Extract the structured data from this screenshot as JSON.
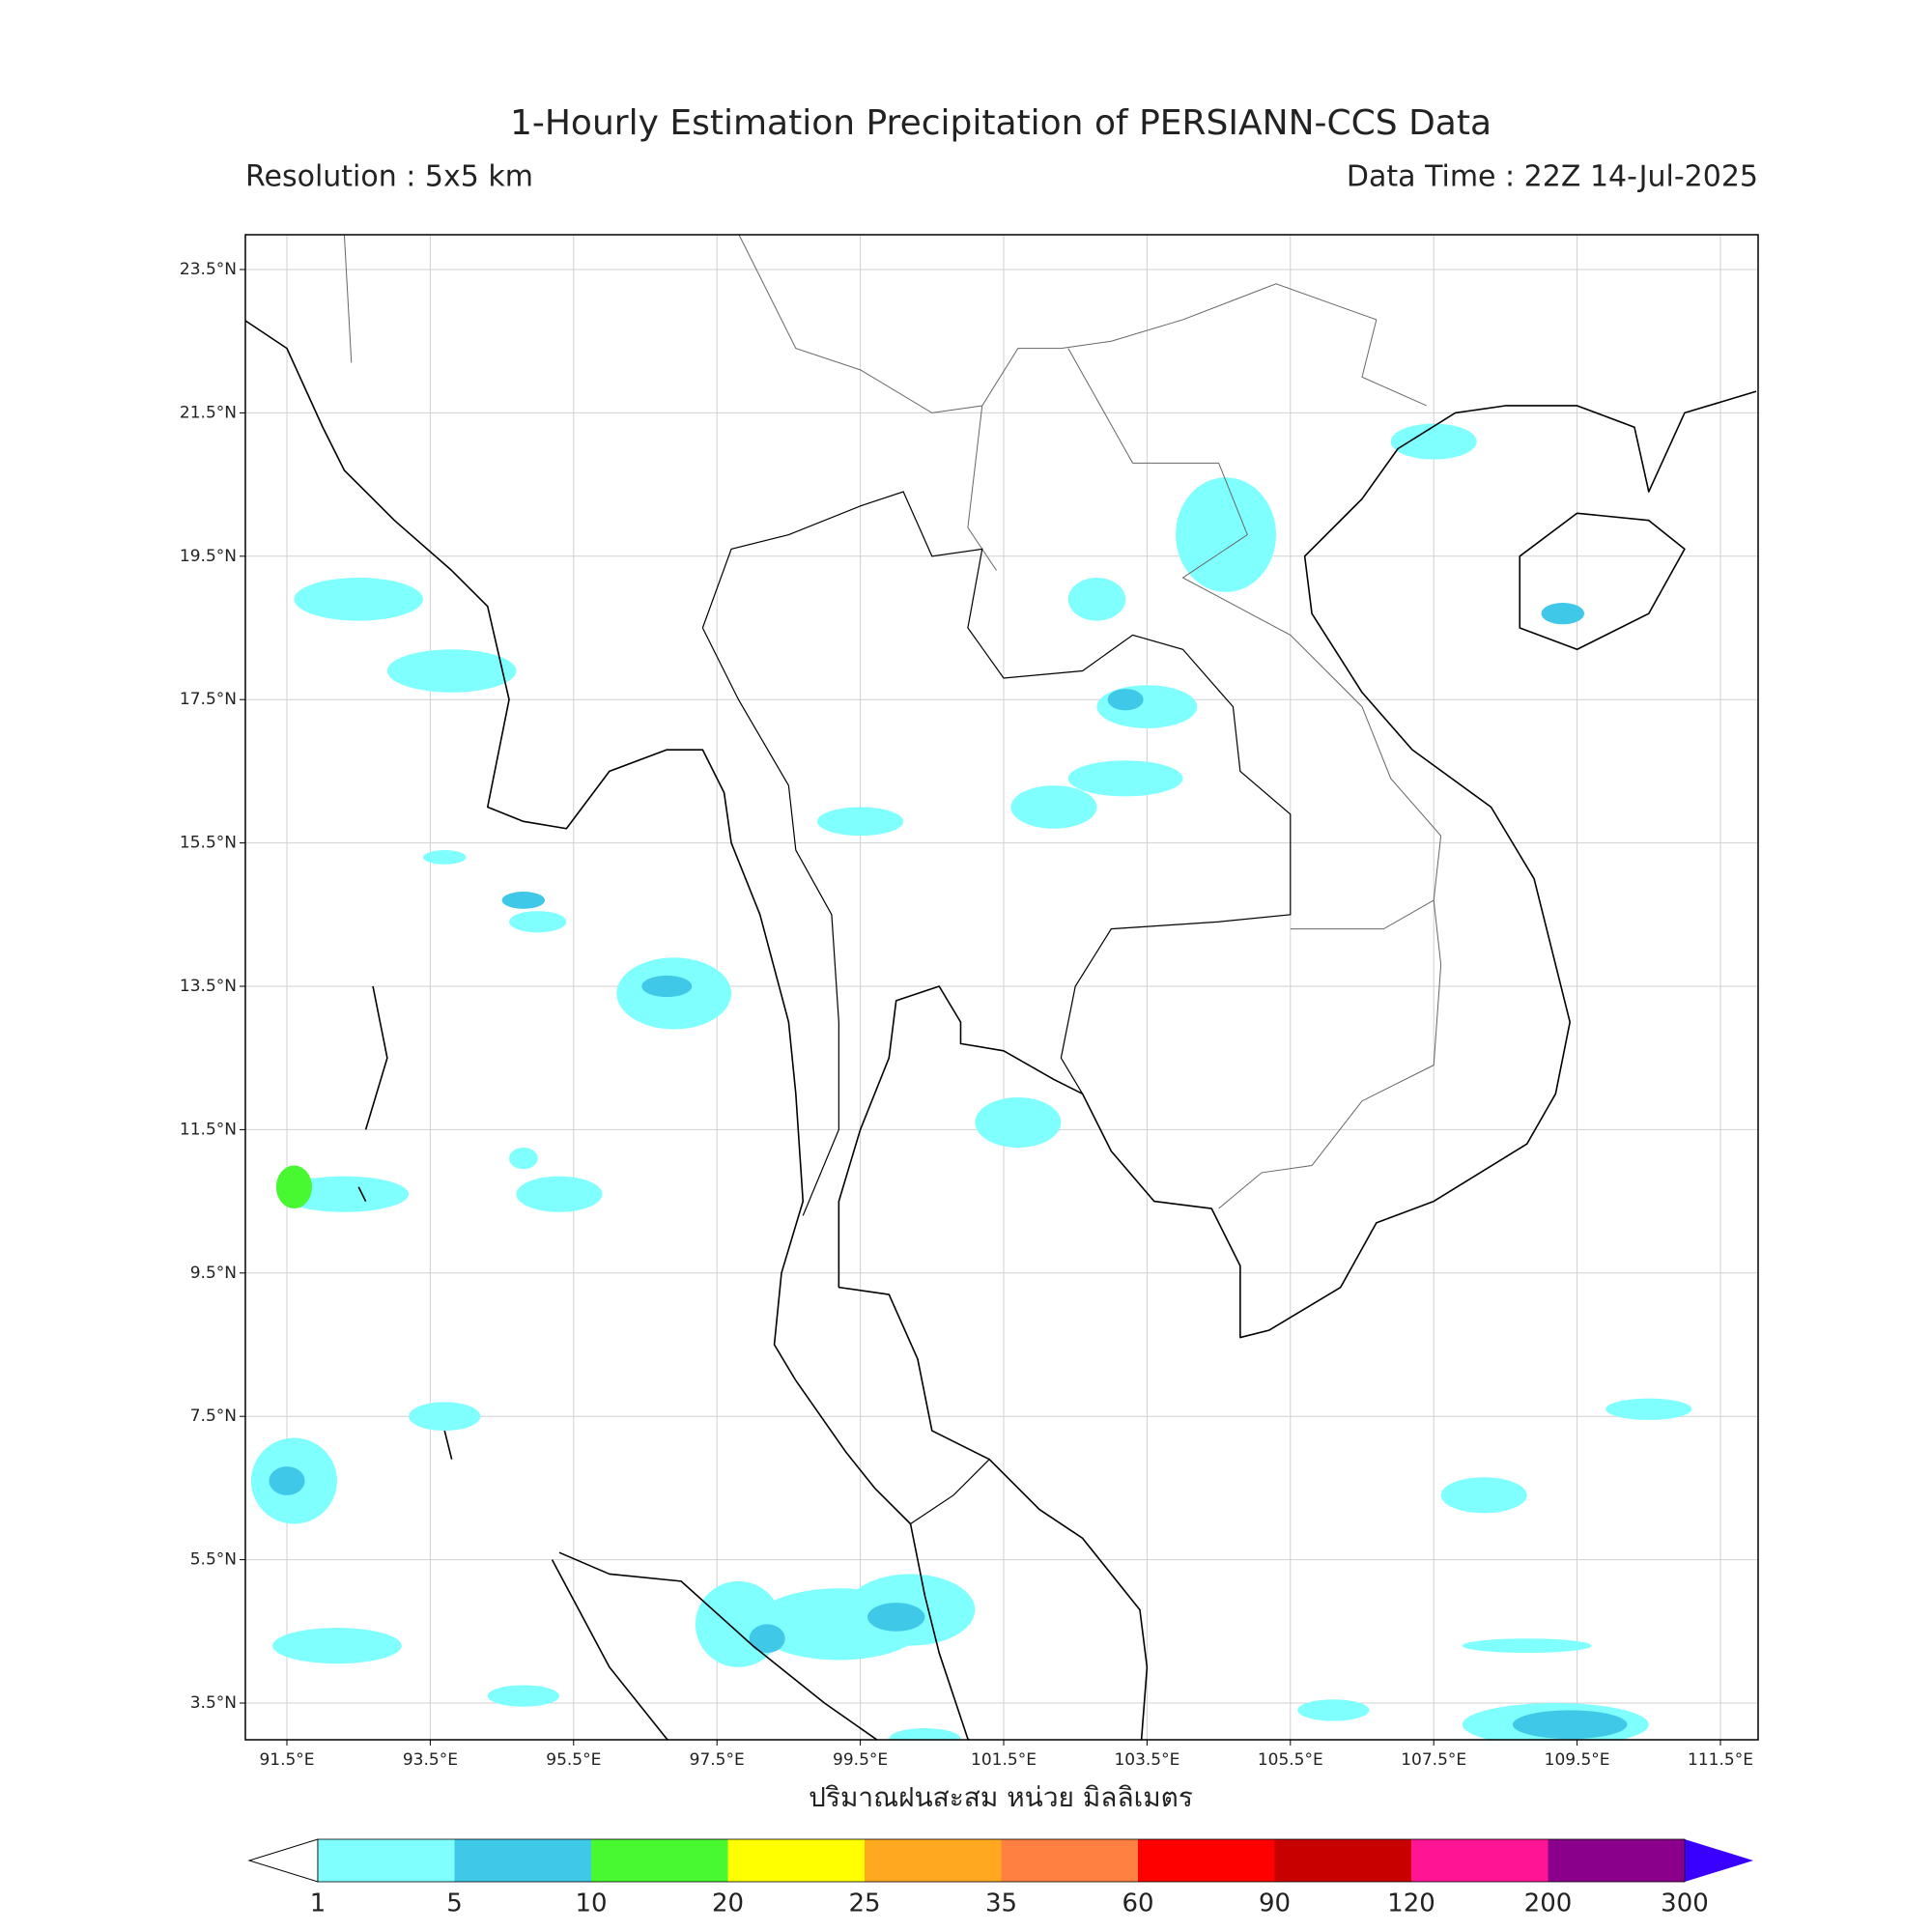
{
  "title": "1-Hourly Estimation Precipitation of PERSIANN-CCS Data",
  "resolution": "Resolution : 5x5 km",
  "data_time": "Data Time : 22Z 14-Jul-2025",
  "x_label": "ปริมาณฝนสะสม หน่วย มิลลิเมตร",
  "lon_ticks": [
    {
      "value": 91.5,
      "label": "91.5°E"
    },
    {
      "value": 93.5,
      "label": "93.5°E"
    },
    {
      "value": 95.5,
      "label": "95.5°E"
    },
    {
      "value": 97.5,
      "label": "97.5°E"
    },
    {
      "value": 99.5,
      "label": "99.5°E"
    },
    {
      "value": 101.5,
      "label": "101.5°E"
    },
    {
      "value": 103.5,
      "label": "103.5°E"
    },
    {
      "value": 105.5,
      "label": "105.5°E"
    },
    {
      "value": 107.5,
      "label": "107.5°E"
    },
    {
      "value": 109.5,
      "label": "109.5°E"
    },
    {
      "value": 111.5,
      "label": "111.5°E"
    }
  ],
  "lat_ticks": [
    {
      "value": 23.5,
      "label": "23.5°N"
    },
    {
      "value": 21.5,
      "label": "21.5°N"
    },
    {
      "value": 19.5,
      "label": "19.5°N"
    },
    {
      "value": 17.5,
      "label": "17.5°N"
    },
    {
      "value": 15.5,
      "label": "15.5°N"
    },
    {
      "value": 13.5,
      "label": "13.5°N"
    },
    {
      "value": 11.5,
      "label": "11.5°N"
    },
    {
      "value": 9.5,
      "label": "9.5°N"
    },
    {
      "value": 7.5,
      "label": "7.5°N"
    },
    {
      "value": 5.5,
      "label": "5.5°N"
    },
    {
      "value": 3.5,
      "label": "3.5°N"
    }
  ],
  "colorbar": {
    "levels": [
      1,
      5,
      10,
      20,
      25,
      35,
      60,
      90,
      120,
      200,
      300
    ],
    "colors": [
      "#80ffff",
      "#40c8e8",
      "#48f830",
      "#ffff00",
      "#ffa820",
      "#ff8040",
      "#ff0000",
      "#c80000",
      "#ff1493",
      "#8b008b"
    ],
    "under_color": "#ffffff",
    "over_color": "#3a00ff"
  }
}
